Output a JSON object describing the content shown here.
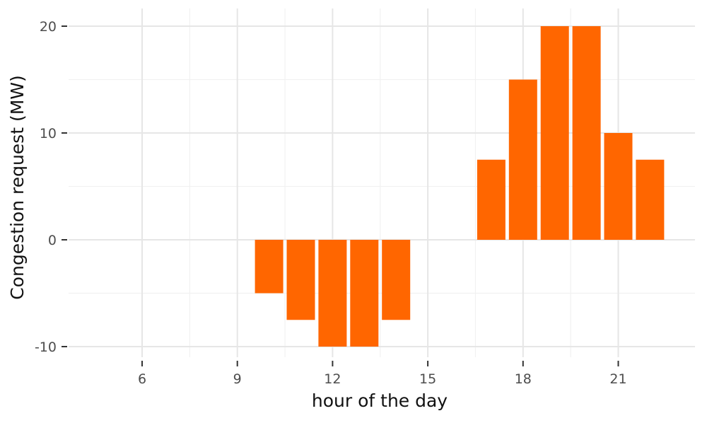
{
  "chart_data": {
    "type": "bar",
    "xlabel": "hour of the day",
    "ylabel": "Congestion request (MW)",
    "x": [
      10,
      11,
      12,
      13,
      14,
      17,
      18,
      19,
      20,
      21,
      22
    ],
    "values": [
      -5,
      -7.5,
      -10,
      -10,
      -7.5,
      7.5,
      15,
      20,
      20,
      10,
      7.5
    ],
    "xlim": [
      4,
      23
    ],
    "ylim": [
      -10,
      20
    ],
    "x_ticks": [
      6,
      9,
      12,
      15,
      18,
      21
    ],
    "y_ticks": [
      -10,
      0,
      10,
      20
    ],
    "x_tick_labels": [
      "6",
      "9",
      "12",
      "15",
      "18",
      "21"
    ],
    "y_tick_labels": [
      "-10",
      "0",
      "10",
      "20"
    ],
    "bar_color": "#ff6600",
    "grid": true,
    "legend": "none"
  }
}
